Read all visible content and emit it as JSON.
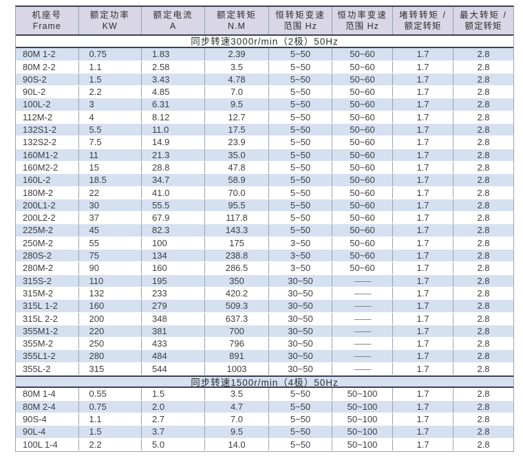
{
  "table": {
    "colors": {
      "header_bg": "#d9d6e5",
      "stripe_bg": "#d5e1f1",
      "border_dark": "#3a4050",
      "border_grey": "#98a0ac",
      "text": "#3c3c3c"
    },
    "header": {
      "columns": [
        {
          "line1": "机座号",
          "line2": "Frame"
        },
        {
          "line1": "额定功率",
          "line2": "KW"
        },
        {
          "line1": "额定电流",
          "line2": "A"
        },
        {
          "line1": "额定转矩",
          "line2": "N.M"
        },
        {
          "line1": "恒转矩变速",
          "line2": "范围 Hz"
        },
        {
          "line1": "恒功率变速",
          "line2": "范围 Hz"
        },
        {
          "line1": "堵转转矩 /",
          "line2": "额定转矩"
        },
        {
          "line1": "最大转矩 /",
          "line2": "额定转矩"
        }
      ]
    },
    "sections": [
      {
        "title": "同步转速3000r/min（2极）50Hz",
        "rows": [
          [
            "80M 1-2",
            "0.75",
            "1.83",
            "2.39",
            "5~50",
            "50~60",
            "1.7",
            "2.8"
          ],
          [
            "80M 2-2",
            "1.1",
            "2.58",
            "3.5",
            "5~50",
            "50~60",
            "1.7",
            "2.8"
          ],
          [
            "90S-2",
            "1.5",
            "3.43",
            "4.78",
            "5~50",
            "50~60",
            "1.7",
            "2.8"
          ],
          [
            "90L-2",
            "2.2",
            "4.85",
            "7.0",
            "5~50",
            "50~60",
            "1.7",
            "2.8"
          ],
          [
            "100L-2",
            "3",
            "6.31",
            "9.5",
            "5~50",
            "50~60",
            "1.7",
            "2.8"
          ],
          [
            "112M-2",
            "4",
            "8.12",
            "12.7",
            "5~50",
            "50~60",
            "1.7",
            "2.8"
          ],
          [
            "132S1-2",
            "5.5",
            "11.0",
            "17.5",
            "5~50",
            "50~60",
            "1.7",
            "2.8"
          ],
          [
            "132S2-2",
            "7.5",
            "14.9",
            "23.9",
            "5~50",
            "50~60",
            "1.7",
            "2.8"
          ],
          [
            "160M1-2",
            "11",
            "21.3",
            "35.0",
            "5~50",
            "50~60",
            "1.7",
            "2.8"
          ],
          [
            "160M2-2",
            "15",
            "28.8",
            "47.8",
            "5~50",
            "50~60",
            "1.7",
            "2.8"
          ],
          [
            "160L-2",
            "18.5",
            "34.7",
            "58.9",
            "5~50",
            "50~60",
            "1.7",
            "2.8"
          ],
          [
            "180M-2",
            "22",
            "41.0",
            "70.0",
            "5~50",
            "50~60",
            "1.7",
            "2.8"
          ],
          [
            "200L1-2",
            "30",
            "55.5",
            "95.5",
            "5~50",
            "50~60",
            "1.7",
            "2.8"
          ],
          [
            "200L2-2",
            "37",
            "67.9",
            "117.8",
            "5~50",
            "50~60",
            "1.7",
            "2.8"
          ],
          [
            "225M-2",
            "45",
            "82.3",
            "143.3",
            "5~50",
            "50~60",
            "1.7",
            "2.8"
          ],
          [
            "250M-2",
            "55",
            "100",
            "175",
            "3~50",
            "50~60",
            "1.7",
            "2.8"
          ],
          [
            "280S-2",
            "75",
            "134",
            "238.8",
            "3~50",
            "50~60",
            "1.7",
            "2.8"
          ],
          [
            "280M-2",
            "90",
            "160",
            "286.5",
            "3~50",
            "50~60",
            "1.7",
            "2.8"
          ],
          [
            "315S-2",
            "110",
            "195",
            "350",
            "30~50",
            "——",
            "1.7",
            "2.8"
          ],
          [
            "315M-2",
            "132",
            "233",
            "420.2",
            "30~50",
            "——",
            "1.7",
            "2.8"
          ],
          [
            "315L 1-2",
            "160",
            "279",
            "509.3",
            "30~50",
            "——",
            "1.7",
            "2.8"
          ],
          [
            "315L 2-2",
            "200",
            "348",
            "637.3",
            "30~50",
            "——",
            "1.7",
            "2.8"
          ],
          [
            "355M1-2",
            "220",
            "381",
            "700",
            "30~50",
            "——",
            "1.7",
            "2.8"
          ],
          [
            "355M-2",
            "250",
            "433",
            "796",
            "30~50",
            "——",
            "1.7",
            "2.8"
          ],
          [
            "355L1-2",
            "280",
            "484",
            "891",
            "30~50",
            "——",
            "1.7",
            "2.8"
          ],
          [
            "355L-2",
            "315",
            "544",
            "1003",
            "30~50",
            "——",
            "1.7",
            "2.8"
          ]
        ]
      },
      {
        "title": "同步转速1500r/min（4极）50Hz",
        "rows": [
          [
            "80M 1-4",
            "0.55",
            "1.5",
            "3.5",
            "5~50",
            "50~100",
            "1.7",
            "2.8"
          ],
          [
            "80M 2-4",
            "0.75",
            "2.0",
            "4.7",
            "5~50",
            "50~100",
            "1.7",
            "2.8"
          ],
          [
            "90S-4",
            "1.1",
            "2.7",
            "7.0",
            "5~50",
            "50~100",
            "1.7",
            "2.8"
          ],
          [
            "90L-4",
            "1.5",
            "3.7",
            "9.5",
            "5~50",
            "50~100",
            "1.7",
            "2.8"
          ],
          [
            "100L 1-4",
            "2.2",
            "5.0",
            "14.0",
            "5~50",
            "50~100",
            "1.7",
            "2.8"
          ]
        ]
      }
    ]
  }
}
